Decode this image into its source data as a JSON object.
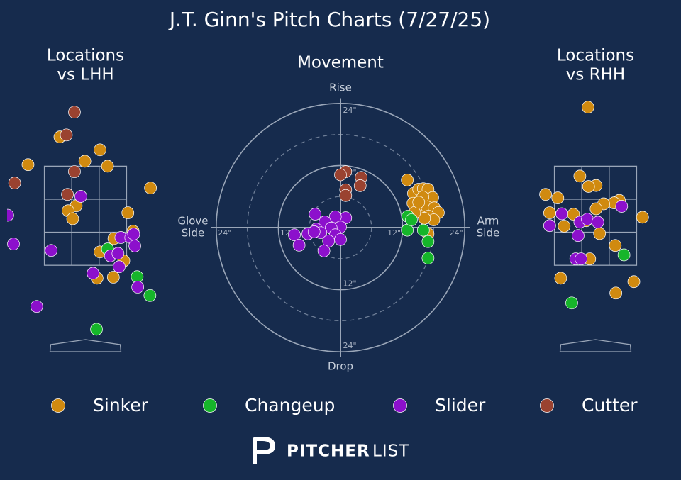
{
  "title": "J.T. Ginn's Pitch Charts (7/27/25)",
  "logo": {
    "bold": "PITCHER",
    "light": "LIST"
  },
  "chart_data": [
    {
      "type": "scatter",
      "title": [
        "Locations",
        "vs LHH"
      ],
      "xlim": [
        -1.35,
        1.35
      ],
      "ylim": [
        -0.3,
        4.85
      ],
      "series": [
        {
          "name": "Sinker",
          "color": "#d08a10",
          "x": [
            -0.44,
            0.25,
            -0.01,
            -0.99,
            0.38,
            1.12,
            -0.16,
            -0.3,
            -0.22,
            0.73,
            0.82,
            0.49,
            0.25,
            0.66,
            0.2,
            0.48
          ],
          "y": [
            4.09,
            3.83,
            3.6,
            3.53,
            3.5,
            3.06,
            2.7,
            2.6,
            2.44,
            2.56,
            2.19,
            2.04,
            1.77,
            1.59,
            1.24,
            1.26
          ]
        },
        {
          "name": "Changeup",
          "color": "#16b52a",
          "x": [
            0.38,
            0.89,
            1.11,
            0.19
          ],
          "y": [
            1.83,
            1.27,
            0.89,
            0.21
          ]
        },
        {
          "name": "Slider",
          "color": "#8c10cc",
          "x": [
            -0.08,
            -1.34,
            -1.24,
            -0.59,
            0.61,
            0.78,
            0.83,
            0.85,
            0.43,
            0.56,
            0.58,
            0.13,
            0.9,
            -0.84
          ],
          "y": [
            2.89,
            2.51,
            1.93,
            1.8,
            2.06,
            2.06,
            2.13,
            1.89,
            1.69,
            1.74,
            1.47,
            1.34,
            1.06,
            0.67
          ]
        },
        {
          "name": "Cutter",
          "color": "#9a4230",
          "x": [
            -0.19,
            -0.33,
            -0.19,
            -1.22,
            -0.31
          ],
          "y": [
            4.59,
            4.13,
            3.39,
            3.16,
            2.93
          ]
        }
      ]
    },
    {
      "type": "movement",
      "title": "Movement",
      "axis_labels": {
        "top": "Rise",
        "bottom": "Drop",
        "left": [
          "Glove",
          "Side"
        ],
        "right": [
          "Arm",
          "Side"
        ]
      },
      "xlim": [
        -25,
        25
      ],
      "ylim": [
        -25,
        25
      ],
      "rings": [
        {
          "value": 12,
          "label": "12\""
        },
        {
          "value": 24,
          "label": "24\""
        }
      ],
      "dashed_rings": [
        6,
        18
      ],
      "series": [
        {
          "name": "Sinker",
          "color": "#d08a10",
          "x": [
            12.9,
            14.1,
            15.1,
            16.0,
            16.9,
            17.8,
            15.9,
            14.0,
            15.0,
            16.7,
            18.1,
            18.9,
            17.0,
            18.0,
            16.2,
            14.3,
            16.9,
            15.1
          ],
          "y": [
            9.2,
            6.6,
            7.4,
            7.5,
            7.4,
            5.8,
            5.9,
            4.7,
            3.2,
            4.0,
            3.8,
            2.9,
            2.2,
            1.5,
            1.8,
            2.9,
            -1.2,
            4.9
          ]
        },
        {
          "name": "Changeup",
          "color": "#16b52a",
          "x": [
            13.0,
            12.9,
            16.0,
            16.9,
            16.9,
            13.7
          ],
          "y": [
            2.2,
            -0.5,
            -0.5,
            -2.7,
            -5.9,
            1.5
          ]
        },
        {
          "name": "Slider",
          "color": "#8c10cc",
          "x": [
            -4.9,
            1.0,
            -1.0,
            -3.0,
            0.0,
            -1.8,
            -4.7,
            -6.3,
            -8.9,
            -3.8,
            -1.0,
            -2.3,
            0.0,
            -8.0,
            -3.2,
            -5.1
          ],
          "y": [
            2.6,
            1.9,
            2.1,
            1.1,
            0.1,
            -0.1,
            -0.3,
            -1.2,
            -1.4,
            -1.0,
            -1.4,
            -2.6,
            -2.3,
            -3.4,
            -4.5,
            -0.8
          ]
        },
        {
          "name": "Cutter",
          "color": "#9a4230",
          "x": [
            1.0,
            0.0,
            4.0,
            3.8,
            1.0,
            1.0
          ],
          "y": [
            10.8,
            10.2,
            9.7,
            8.1,
            7.3,
            6.2
          ]
        }
      ]
    },
    {
      "type": "scatter",
      "title": [
        "Locations",
        "vs RHH"
      ],
      "xlim": [
        -1.35,
        1.35
      ],
      "ylim": [
        -0.3,
        4.85
      ],
      "series": [
        {
          "name": "Sinker",
          "color": "#d08a10",
          "x": [
            -0.13,
            -0.27,
            0.01,
            -0.12,
            -0.86,
            -0.65,
            0.41,
            0.32,
            0.14,
            0.01,
            -0.38,
            -0.79,
            0.81,
            -0.16,
            -0.54,
            0.07,
            0.34,
            -0.1,
            -0.6,
            0.35,
            0.66
          ],
          "y": [
            4.69,
            3.3,
            3.11,
            3.09,
            2.93,
            2.86,
            2.81,
            2.76,
            2.74,
            2.64,
            2.53,
            2.56,
            2.47,
            2.4,
            2.29,
            2.14,
            1.9,
            1.63,
            1.24,
            0.94,
            1.17
          ]
        },
        {
          "name": "Changeup",
          "color": "#16b52a",
          "x": [
            0.49,
            -0.41
          ],
          "y": [
            1.71,
            0.74
          ]
        },
        {
          "name": "Slider",
          "color": "#8c10cc",
          "x": [
            0.45,
            -0.58,
            -0.27,
            -0.14,
            0.04,
            -0.79,
            -0.3,
            -0.34,
            -0.25
          ],
          "y": [
            2.69,
            2.54,
            2.37,
            2.43,
            2.37,
            2.3,
            2.1,
            1.63,
            1.63
          ]
        }
      ]
    }
  ]
}
